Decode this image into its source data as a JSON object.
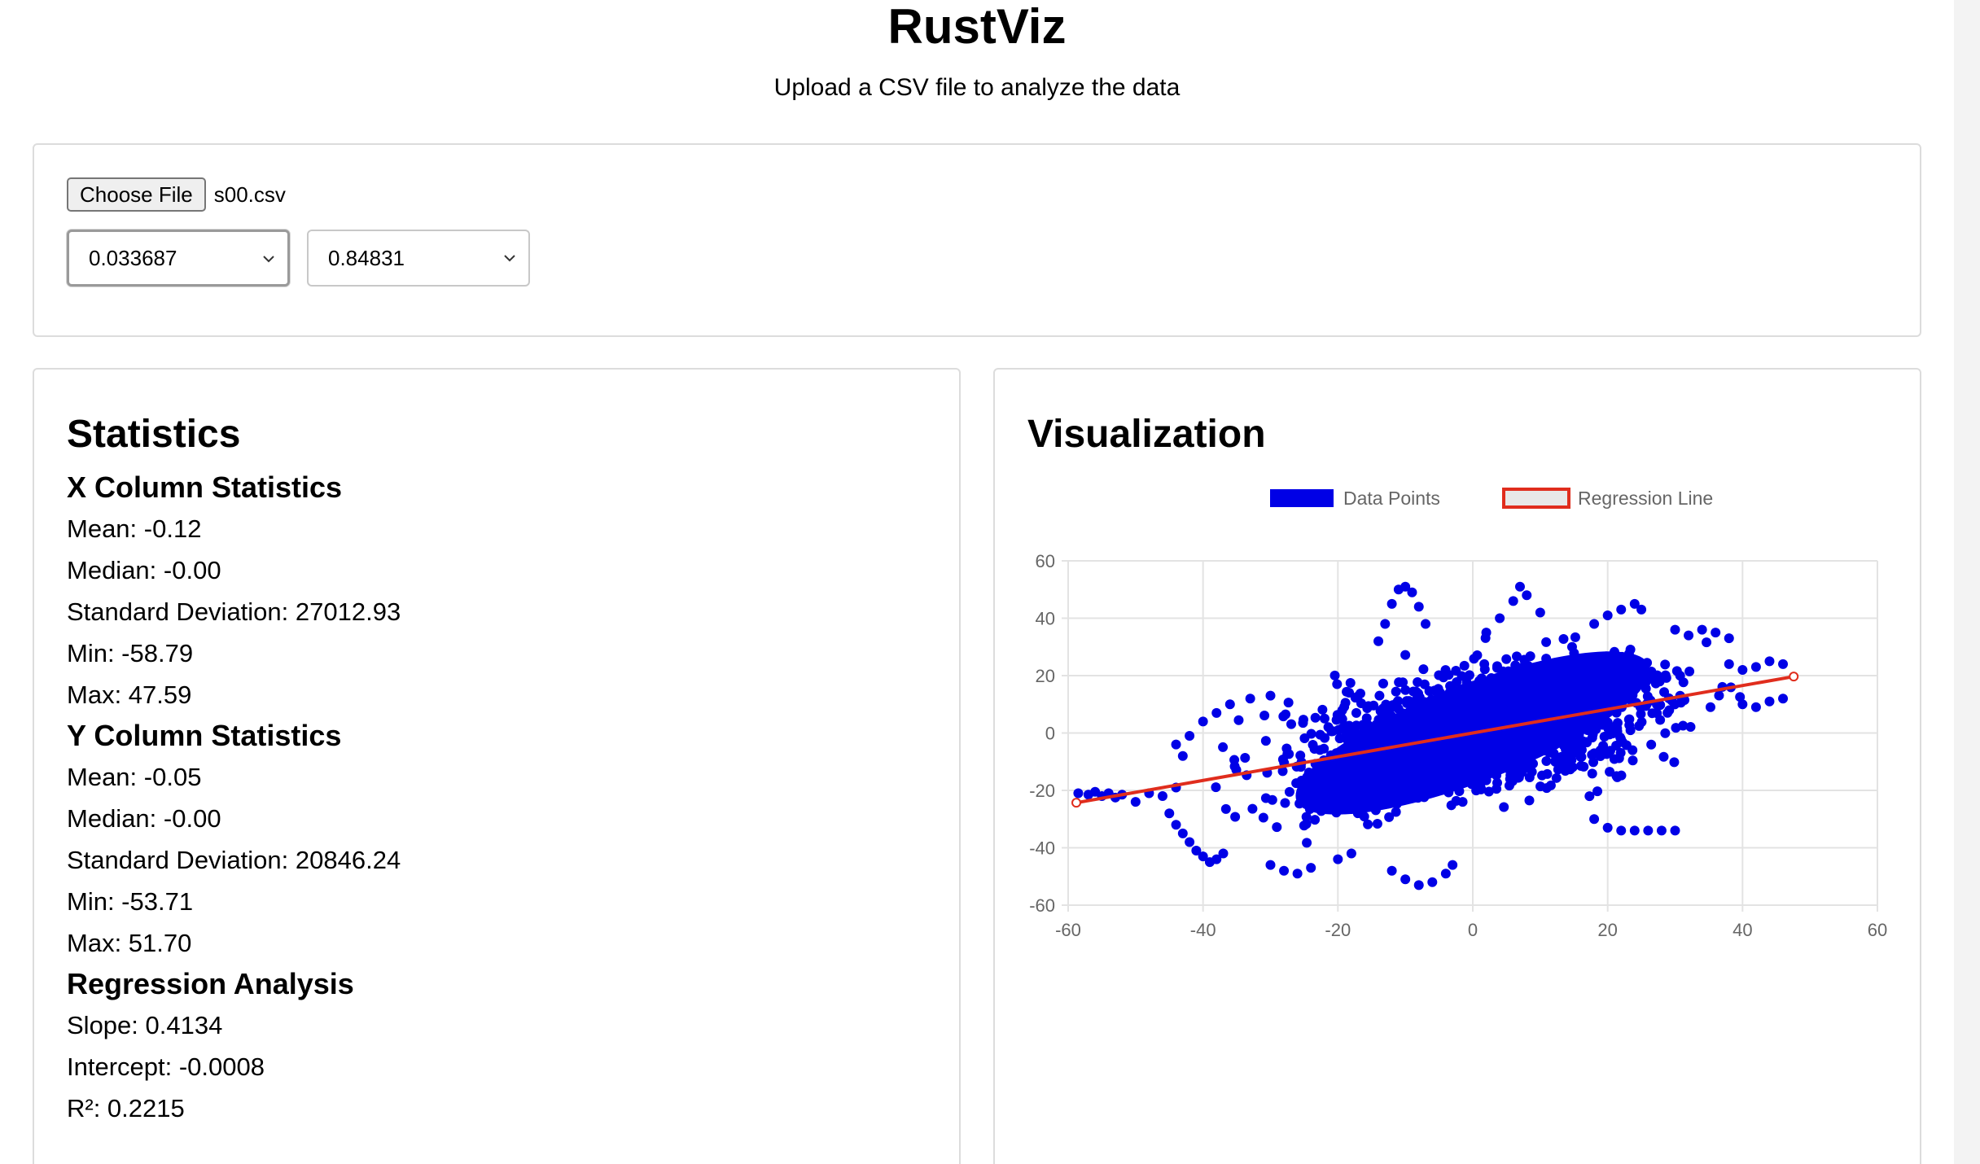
{
  "header": {
    "title": "RustViz",
    "subtitle": "Upload a CSV file to analyze the data"
  },
  "upload": {
    "choose_file_label": "Choose File",
    "file_name": "s00.csv",
    "x_column_select": "0.033687",
    "y_column_select": "0.84831"
  },
  "statistics": {
    "title": "Statistics",
    "x_heading": "X Column Statistics",
    "x_lines": [
      "Mean: -0.12",
      "Median: -0.00",
      "Standard Deviation: 27012.93",
      "Min: -58.79",
      "Max: 47.59"
    ],
    "y_heading": "Y Column Statistics",
    "y_lines": [
      "Mean: -0.05",
      "Median: -0.00",
      "Standard Deviation: 20846.24",
      "Min: -53.71",
      "Max: 51.70"
    ],
    "regression_heading": "Regression Analysis",
    "regression_lines": [
      "Slope: 0.4134",
      "Intercept: -0.0008",
      "R²: 0.2215"
    ]
  },
  "visualization": {
    "title": "Visualization"
  },
  "colors": {
    "points": "#0000e6",
    "regression": "#e02d1d",
    "grid": "#e3e3e3"
  },
  "chart_data": {
    "type": "scatter",
    "xlim": [
      -60,
      60
    ],
    "ylim": [
      -60,
      60
    ],
    "x_ticks": [
      -60,
      -40,
      -20,
      0,
      20,
      40,
      60
    ],
    "y_ticks": [
      60,
      40,
      20,
      0,
      -20,
      -40,
      -60
    ],
    "grid": true,
    "legend": "top-center",
    "series": [
      {
        "name": "Data Points",
        "kind": "scatter",
        "color": "#0000e6"
      },
      {
        "name": "Regression Line",
        "kind": "line",
        "color": "#e02d1d",
        "x": [
          -58.79,
          47.59
        ],
        "y": [
          -24.3,
          19.67
        ]
      }
    ],
    "points": [
      [
        -58.5,
        -21
      ],
      [
        -57,
        -21.5
      ],
      [
        -56,
        -20.5
      ],
      [
        -55,
        -22
      ],
      [
        -54,
        -21
      ],
      [
        -53,
        -22.5
      ],
      [
        -52,
        -21.5
      ],
      [
        -50,
        -24
      ],
      [
        -48,
        -21
      ],
      [
        -46,
        -22
      ],
      [
        -44,
        -19
      ],
      [
        -45,
        -28
      ],
      [
        -44,
        -32
      ],
      [
        -43,
        -35
      ],
      [
        -42,
        -38
      ],
      [
        -41,
        -41
      ],
      [
        -40,
        -43
      ],
      [
        -39,
        -45
      ],
      [
        -38,
        -44
      ],
      [
        -37,
        -42
      ],
      [
        -43,
        -8
      ],
      [
        -44,
        -4
      ],
      [
        -42,
        -1
      ],
      [
        -40,
        4
      ],
      [
        -38,
        7
      ],
      [
        -36,
        10
      ],
      [
        -33,
        12
      ],
      [
        -30,
        13
      ],
      [
        -12,
        -48
      ],
      [
        -10,
        -51
      ],
      [
        -8,
        -53
      ],
      [
        -6,
        -52
      ],
      [
        -4,
        -49
      ],
      [
        -3,
        -46
      ],
      [
        -14,
        32
      ],
      [
        -13,
        38
      ],
      [
        -12,
        45
      ],
      [
        -11,
        50
      ],
      [
        -10,
        51
      ],
      [
        -9,
        49
      ],
      [
        -8,
        44
      ],
      [
        -7,
        38
      ],
      [
        2,
        35
      ],
      [
        4,
        40
      ],
      [
        6,
        46
      ],
      [
        7,
        51
      ],
      [
        8,
        48
      ],
      [
        10,
        42
      ],
      [
        18,
        38
      ],
      [
        20,
        41
      ],
      [
        22,
        43
      ],
      [
        24,
        45
      ],
      [
        25,
        43
      ],
      [
        30,
        36
      ],
      [
        32,
        34
      ],
      [
        34,
        36
      ],
      [
        36,
        35
      ],
      [
        38,
        33
      ],
      [
        38,
        24
      ],
      [
        40,
        22
      ],
      [
        42,
        23
      ],
      [
        44,
        25
      ],
      [
        46,
        24
      ],
      [
        40,
        10
      ],
      [
        42,
        9
      ],
      [
        44,
        11
      ],
      [
        46,
        12
      ],
      [
        18,
        -30
      ],
      [
        20,
        -33
      ],
      [
        22,
        -34
      ],
      [
        24,
        -34
      ],
      [
        26,
        -34
      ],
      [
        28,
        -34
      ],
      [
        30,
        -34
      ],
      [
        -30,
        -46
      ],
      [
        -28,
        -48
      ],
      [
        -26,
        -49
      ],
      [
        -24,
        -47
      ],
      [
        -20,
        -44
      ],
      [
        -18,
        -42
      ]
    ]
  }
}
